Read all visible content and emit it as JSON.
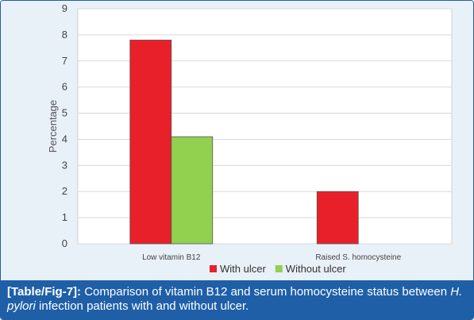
{
  "chart_data": {
    "type": "bar",
    "categories": [
      "Low vitamin B12",
      "Raised S. homocysteine"
    ],
    "series": [
      {
        "name": "With ulcer",
        "color": "#e8202a",
        "values": [
          7.8,
          2.0
        ]
      },
      {
        "name": "Without ulcer",
        "color": "#92d050",
        "values": [
          4.1,
          null
        ]
      }
    ],
    "ylabel": "Percentage",
    "xlabel": "",
    "ylim": [
      0,
      9
    ],
    "yticks": [
      0,
      1,
      2,
      3,
      4,
      5,
      6,
      7,
      8,
      9
    ],
    "grid": true,
    "legend_position": "bottom"
  },
  "caption": {
    "tag": "[Table/Fig-7]:",
    "text_part1": " Comparison of vitamin B12 and serum homocysteine status between ",
    "text_italic": "H. pylori",
    "text_part2": " infection patients with and without ulcer."
  }
}
